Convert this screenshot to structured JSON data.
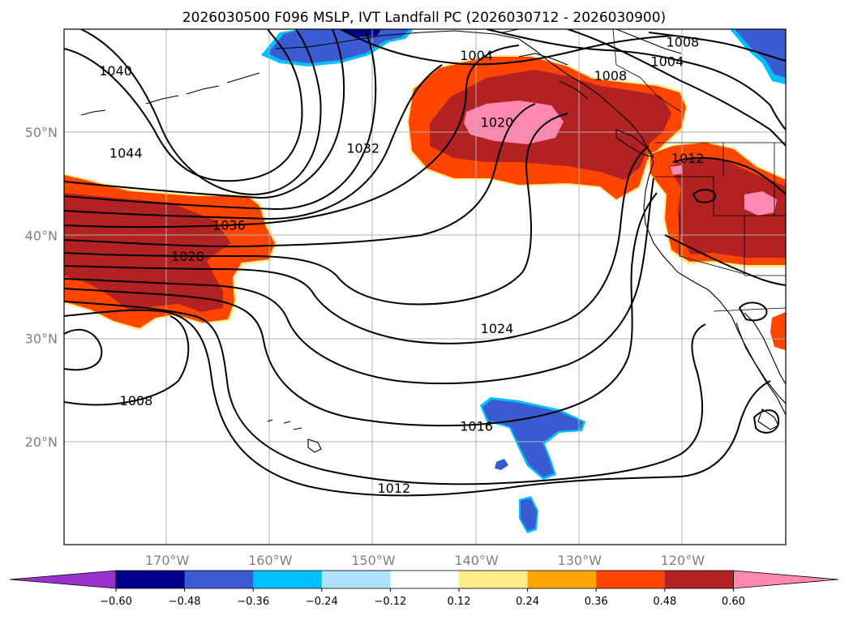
{
  "title": "2026030500 F096 MSLP, IVT Landfall PC (2026030712 - 2026030900)",
  "axes": {
    "lon_ticks": [
      {
        "label": "170°W",
        "lon": -170
      },
      {
        "label": "160°W",
        "lon": -160
      },
      {
        "label": "150°W",
        "lon": -150
      },
      {
        "label": "140°W",
        "lon": -140
      },
      {
        "label": "130°W",
        "lon": -130
      },
      {
        "label": "120°W",
        "lon": -120
      }
    ],
    "lat_ticks": [
      {
        "label": "50°N",
        "lat": 50
      },
      {
        "label": "40°N",
        "lat": 40
      },
      {
        "label": "30°N",
        "lat": 30
      },
      {
        "label": "20°N",
        "lat": 20
      }
    ],
    "lon_range": [
      -180,
      -110
    ],
    "lat_range": [
      10,
      60
    ],
    "grid": true
  },
  "colorbar": {
    "ticks": [
      "−0.60",
      "−0.48",
      "−0.36",
      "−0.24",
      "−0.12",
      "0.12",
      "0.24",
      "0.36",
      "0.48",
      "0.60"
    ],
    "colors": [
      "#9932cc",
      "#00008b",
      "#3a5bd1",
      "#00bfff",
      "#b0e2ff",
      "#ffffff",
      "#ffec8b",
      "#ffa500",
      "#ff4500",
      "#b22222",
      "#ff88b0"
    ],
    "extend": "both"
  },
  "isobar_labels": [
    {
      "text": "1040",
      "lon": -175,
      "lat": 56
    },
    {
      "text": "1044",
      "lon": -174,
      "lat": 48
    },
    {
      "text": "1036",
      "lon": -164,
      "lat": 41
    },
    {
      "text": "1028",
      "lon": -168,
      "lat": 38
    },
    {
      "text": "1032",
      "lon": -151,
      "lat": 48.5
    },
    {
      "text": "1024",
      "lon": -138,
      "lat": 31
    },
    {
      "text": "1020",
      "lon": -138,
      "lat": 51
    },
    {
      "text": "1016",
      "lon": -140,
      "lat": 21.5
    },
    {
      "text": "1012",
      "lon": -148,
      "lat": 15.5
    },
    {
      "text": "1008",
      "lon": -173,
      "lat": 24
    },
    {
      "text": "1004",
      "lon": -140,
      "lat": 57.5
    },
    {
      "text": "1008",
      "lon": -127,
      "lat": 55.5
    },
    {
      "text": "1004",
      "lon": -121.5,
      "lat": 56.9
    },
    {
      "text": "1008",
      "lon": -120,
      "lat": 58.8
    },
    {
      "text": "1012",
      "lon": -119.5,
      "lat": 47.5
    }
  ]
}
